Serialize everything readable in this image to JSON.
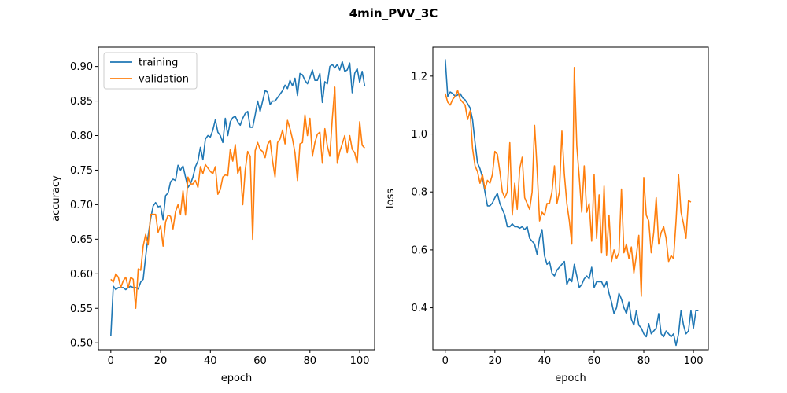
{
  "figure": {
    "title": "4min_PVV_3C"
  },
  "colors": {
    "training": "#1f77b4",
    "validation": "#ff7f0e"
  },
  "chart_data": [
    {
      "type": "line",
      "xlabel": "epoch",
      "ylabel": "accuracy",
      "xlim": [
        -5,
        106
      ],
      "ylim": [
        0.49,
        0.928
      ],
      "xticks": [
        0,
        20,
        40,
        60,
        80,
        100
      ],
      "yticks": [
        0.5,
        0.55,
        0.6,
        0.65,
        0.7,
        0.75,
        0.8,
        0.85,
        0.9
      ],
      "ytick_labels": [
        "0.50",
        "0.55",
        "0.60",
        "0.65",
        "0.70",
        "0.75",
        "0.80",
        "0.85",
        "0.90"
      ],
      "legend": {
        "position": "top-left",
        "entries": [
          "training",
          "validation"
        ]
      },
      "series": [
        {
          "name": "training",
          "color": "#1f77b4",
          "values": [
            0.51,
            0.582,
            0.577,
            0.58,
            0.58,
            0.58,
            0.577,
            0.58,
            0.582,
            0.58,
            0.58,
            0.578,
            0.588,
            0.592,
            0.625,
            0.655,
            0.68,
            0.698,
            0.703,
            0.697,
            0.698,
            0.678,
            0.713,
            0.717,
            0.733,
            0.737,
            0.735,
            0.757,
            0.75,
            0.756,
            0.74,
            0.725,
            0.73,
            0.74,
            0.755,
            0.763,
            0.783,
            0.765,
            0.795,
            0.8,
            0.798,
            0.808,
            0.823,
            0.805,
            0.8,
            0.79,
            0.825,
            0.8,
            0.82,
            0.826,
            0.828,
            0.82,
            0.815,
            0.825,
            0.832,
            0.835,
            0.812,
            0.812,
            0.83,
            0.85,
            0.835,
            0.85,
            0.865,
            0.863,
            0.845,
            0.85,
            0.85,
            0.855,
            0.86,
            0.865,
            0.873,
            0.868,
            0.88,
            0.872,
            0.883,
            0.858,
            0.89,
            0.888,
            0.88,
            0.875,
            0.884,
            0.895,
            0.88,
            0.88,
            0.89,
            0.848,
            0.878,
            0.875,
            0.9,
            0.903,
            0.898,
            0.903,
            0.895,
            0.907,
            0.893,
            0.895,
            0.905,
            0.862,
            0.89,
            0.897,
            0.877,
            0.893,
            0.872
          ]
        },
        {
          "name": "validation",
          "color": "#ff7f0e",
          "values": [
            0.592,
            0.588,
            0.6,
            0.595,
            0.58,
            0.59,
            0.595,
            0.58,
            0.595,
            0.592,
            0.55,
            0.607,
            0.605,
            0.64,
            0.657,
            0.642,
            0.686,
            0.686,
            0.686,
            0.66,
            0.67,
            0.64,
            0.675,
            0.685,
            0.683,
            0.665,
            0.69,
            0.7,
            0.686,
            0.72,
            0.685,
            0.74,
            0.73,
            0.73,
            0.735,
            0.725,
            0.755,
            0.745,
            0.758,
            0.753,
            0.748,
            0.745,
            0.755,
            0.715,
            0.722,
            0.74,
            0.743,
            0.742,
            0.78,
            0.763,
            0.787,
            0.745,
            0.755,
            0.7,
            0.75,
            0.777,
            0.77,
            0.65,
            0.778,
            0.79,
            0.78,
            0.777,
            0.768,
            0.787,
            0.793,
            0.763,
            0.74,
            0.79,
            0.795,
            0.808,
            0.788,
            0.822,
            0.81,
            0.795,
            0.775,
            0.735,
            0.788,
            0.79,
            0.83,
            0.8,
            0.825,
            0.77,
            0.79,
            0.802,
            0.805,
            0.76,
            0.81,
            0.785,
            0.77,
            0.825,
            0.87,
            0.76,
            0.777,
            0.788,
            0.8,
            0.775,
            0.8,
            0.78,
            0.775,
            0.76,
            0.82,
            0.786,
            0.782
          ]
        }
      ]
    },
    {
      "type": "line",
      "xlabel": "epoch",
      "ylabel": "loss",
      "xlim": [
        -5,
        106
      ],
      "ylim": [
        0.255,
        1.3
      ],
      "xticks": [
        0,
        20,
        40,
        60,
        80,
        100
      ],
      "yticks": [
        0.4,
        0.6,
        0.8,
        1.0,
        1.2
      ],
      "ytick_labels": [
        "0.4",
        "0.6",
        "0.8",
        "1.0",
        "1.2"
      ],
      "series": [
        {
          "name": "training",
          "color": "#1f77b4",
          "values": [
            1.258,
            1.13,
            1.145,
            1.14,
            1.13,
            1.135,
            1.14,
            1.125,
            1.118,
            1.105,
            1.09,
            1.05,
            0.97,
            0.9,
            0.88,
            0.85,
            0.8,
            0.752,
            0.752,
            0.762,
            0.78,
            0.795,
            0.76,
            0.74,
            0.72,
            0.68,
            0.68,
            0.69,
            0.68,
            0.68,
            0.675,
            0.68,
            0.67,
            0.68,
            0.64,
            0.63,
            0.62,
            0.585,
            0.64,
            0.67,
            0.58,
            0.55,
            0.56,
            0.52,
            0.51,
            0.53,
            0.54,
            0.55,
            0.56,
            0.48,
            0.5,
            0.49,
            0.55,
            0.51,
            0.47,
            0.48,
            0.5,
            0.51,
            0.5,
            0.54,
            0.47,
            0.49,
            0.49,
            0.49,
            0.47,
            0.49,
            0.45,
            0.42,
            0.38,
            0.4,
            0.45,
            0.43,
            0.4,
            0.38,
            0.42,
            0.36,
            0.34,
            0.39,
            0.34,
            0.33,
            0.31,
            0.3,
            0.345,
            0.31,
            0.32,
            0.33,
            0.38,
            0.31,
            0.3,
            0.32,
            0.31,
            0.3,
            0.31,
            0.27,
            0.31,
            0.39,
            0.34,
            0.31,
            0.32,
            0.39,
            0.33,
            0.39,
            0.39
          ]
        },
        {
          "name": "validation",
          "color": "#ff7f0e",
          "values": [
            1.14,
            1.11,
            1.1,
            1.12,
            1.13,
            1.15,
            1.12,
            1.11,
            1.1,
            1.05,
            1.08,
            0.95,
            0.89,
            0.87,
            0.83,
            0.86,
            0.81,
            0.84,
            0.83,
            0.86,
            0.94,
            0.93,
            0.87,
            0.8,
            0.78,
            0.8,
            0.97,
            0.72,
            0.83,
            0.74,
            0.88,
            0.92,
            0.78,
            0.76,
            0.74,
            0.8,
            1.03,
            0.88,
            0.7,
            0.73,
            0.72,
            0.76,
            0.76,
            0.8,
            0.89,
            0.76,
            0.8,
            1.01,
            0.86,
            0.76,
            0.7,
            0.62,
            1.23,
            0.96,
            0.85,
            0.73,
            0.89,
            0.73,
            0.76,
            0.63,
            0.86,
            0.64,
            0.79,
            0.59,
            0.82,
            0.58,
            0.72,
            0.56,
            0.6,
            0.57,
            0.59,
            0.81,
            0.59,
            0.62,
            0.57,
            0.61,
            0.52,
            0.58,
            0.65,
            0.44,
            0.85,
            0.72,
            0.7,
            0.59,
            0.66,
            0.78,
            0.62,
            0.66,
            0.68,
            0.64,
            0.56,
            0.58,
            0.57,
            0.7,
            0.86,
            0.73,
            0.69,
            0.64,
            0.77,
            0.765
          ]
        }
      ]
    }
  ]
}
